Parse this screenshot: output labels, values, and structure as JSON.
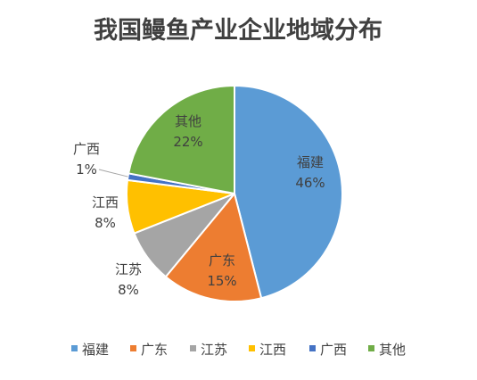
{
  "chart_data": {
    "type": "pie",
    "title": "我国鳗鱼产业企业地域分布",
    "categories": [
      "福建",
      "广东",
      "江苏",
      "江西",
      "广西",
      "其他"
    ],
    "values": [
      46,
      15,
      8,
      8,
      1,
      22
    ],
    "value_labels": [
      "46%",
      "15%",
      "8%",
      "8%",
      "1%",
      "22%"
    ],
    "colors": [
      "#5B9BD5",
      "#ED7D31",
      "#A5A5A5",
      "#FFC000",
      "#4472C4",
      "#70AD47"
    ],
    "legend": "bottom"
  }
}
